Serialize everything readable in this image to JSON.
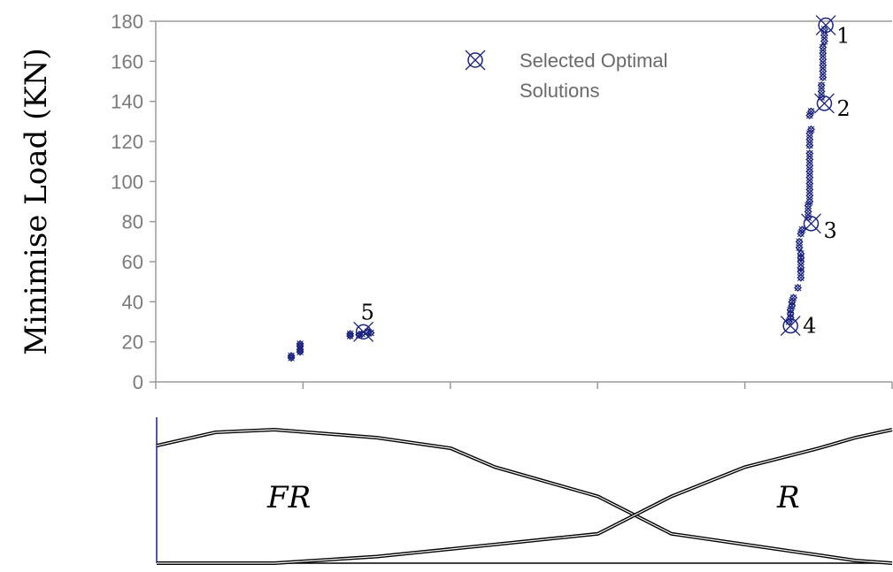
{
  "chart_data": {
    "type": "scatter",
    "ylabel": "Minimise Load (KN)",
    "xlabel": "",
    "ylim": [
      0,
      180
    ],
    "yticks": [
      "0",
      "20",
      "40",
      "60",
      "80",
      "100",
      "120",
      "140",
      "160",
      "180"
    ],
    "grid": false,
    "legend": {
      "label": "Selected Optimal Solutions",
      "label_lines": [
        "Selected Optimal",
        "Solutions"
      ],
      "position": "top-center"
    },
    "series": [
      {
        "points": [
          [
            0.92,
            12
          ],
          [
            0.92,
            13
          ],
          [
            0.98,
            15
          ],
          [
            0.98,
            16
          ],
          [
            0.98,
            18
          ],
          [
            0.98,
            19
          ],
          [
            1.32,
            23
          ],
          [
            1.32,
            24
          ],
          [
            1.38,
            23.5
          ],
          [
            1.4,
            24
          ],
          [
            1.44,
            25
          ],
          [
            1.46,
            24.5
          ],
          [
            4.3,
            30
          ],
          [
            4.31,
            32
          ],
          [
            4.31,
            34
          ],
          [
            4.31,
            36
          ],
          [
            4.32,
            38
          ],
          [
            4.32,
            40
          ],
          [
            4.33,
            42
          ],
          [
            4.36,
            47
          ],
          [
            4.38,
            52
          ],
          [
            4.38,
            55
          ],
          [
            4.38,
            57
          ],
          [
            4.38,
            60
          ],
          [
            4.38,
            62
          ],
          [
            4.38,
            64
          ],
          [
            4.37,
            67
          ],
          [
            4.37,
            70
          ],
          [
            4.38,
            74
          ],
          [
            4.39,
            76
          ],
          [
            4.43,
            82
          ],
          [
            4.43,
            85
          ],
          [
            4.43,
            88
          ],
          [
            4.44,
            90
          ],
          [
            4.44,
            93
          ],
          [
            4.44,
            96
          ],
          [
            4.44,
            99
          ],
          [
            4.44,
            102
          ],
          [
            4.44,
            105
          ],
          [
            4.44,
            108
          ],
          [
            4.44,
            111
          ],
          [
            4.44,
            114
          ],
          [
            4.44,
            118
          ],
          [
            4.44,
            121
          ],
          [
            4.44,
            124
          ],
          [
            4.45,
            126
          ],
          [
            4.44,
            133
          ],
          [
            4.45,
            135
          ],
          [
            4.52,
            142
          ],
          [
            4.52,
            145
          ],
          [
            4.52,
            148
          ],
          [
            4.53,
            152
          ],
          [
            4.53,
            155
          ],
          [
            4.53,
            158
          ],
          [
            4.53,
            161
          ],
          [
            4.53,
            164
          ],
          [
            4.53,
            167
          ],
          [
            4.54,
            170
          ],
          [
            4.54,
            173
          ],
          [
            4.54,
            176
          ]
        ]
      }
    ],
    "selected_solutions": [
      {
        "label": "1",
        "x": 4.55,
        "y": 178
      },
      {
        "label": "2",
        "x": 4.54,
        "y": 139
      },
      {
        "label": "3",
        "x": 4.45,
        "y": 79
      },
      {
        "label": "4",
        "x": 4.31,
        "y": 28
      },
      {
        "label": "5",
        "x": 1.41,
        "y": 25
      }
    ]
  },
  "membership_panel": {
    "type": "line",
    "regions": [
      "FR",
      "R"
    ],
    "curves": [
      {
        "region": "FR",
        "x": [
          0.0,
          0.4,
          0.8,
          1.5,
          2.0,
          2.3,
          3.0,
          3.5,
          4.0,
          4.5,
          4.75,
          5.0
        ],
        "y": [
          0.88,
          0.98,
          1.0,
          0.94,
          0.86,
          0.72,
          0.5,
          0.22,
          0.14,
          0.06,
          0.02,
          0.0
        ]
      },
      {
        "region": "R",
        "x": [
          0.0,
          0.8,
          1.5,
          2.3,
          3.0,
          3.5,
          4.0,
          4.5,
          4.75,
          5.0
        ],
        "y": [
          0.0,
          0.0,
          0.05,
          0.14,
          0.22,
          0.5,
          0.72,
          0.86,
          0.94,
          1.0
        ]
      }
    ]
  }
}
